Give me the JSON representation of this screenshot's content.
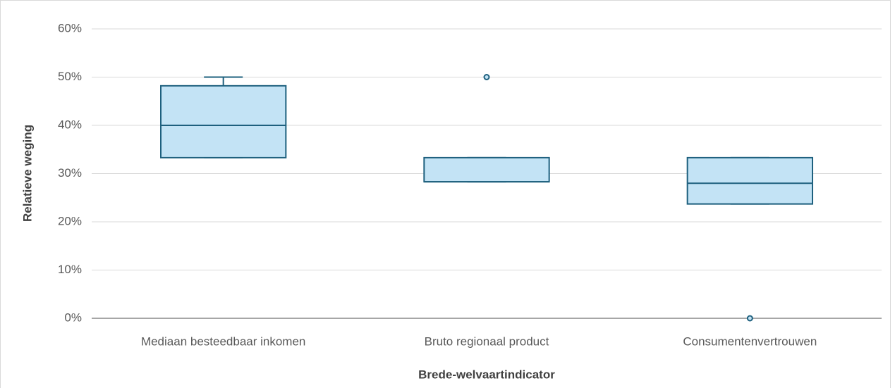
{
  "chart_data": {
    "type": "box",
    "x_label": "Brede-welvaartindicator",
    "y_label": "Relatieve weging",
    "categories": [
      "Mediaan besteedbaar inkomen",
      "Bruto regionaal product",
      "Consumentenvertrouwen"
    ],
    "boxes": [
      {
        "min": 33.3,
        "q1": 33.3,
        "median": 40,
        "q3": 48.2,
        "max": 50,
        "outliers": []
      },
      {
        "min": 28.3,
        "q1": 28.3,
        "median": 28.3,
        "q3": 33.3,
        "max": 33.3,
        "outliers": [
          50
        ]
      },
      {
        "min": 23.7,
        "q1": 23.7,
        "median": 28,
        "q3": 33.3,
        "max": 33.3,
        "outliers": [
          0
        ]
      }
    ],
    "fill": "#c3e3f5",
    "stroke": "#1e607e",
    "ylim": [
      0,
      60
    ],
    "yticks": [
      {
        "value": 0,
        "label": "0%"
      },
      {
        "value": 10,
        "label": "10%"
      },
      {
        "value": 20,
        "label": "20%"
      },
      {
        "value": 30,
        "label": "30%"
      },
      {
        "value": 40,
        "label": "40%"
      },
      {
        "value": 50,
        "label": "50%"
      },
      {
        "value": 60,
        "label": "60%"
      }
    ],
    "grid": true
  }
}
